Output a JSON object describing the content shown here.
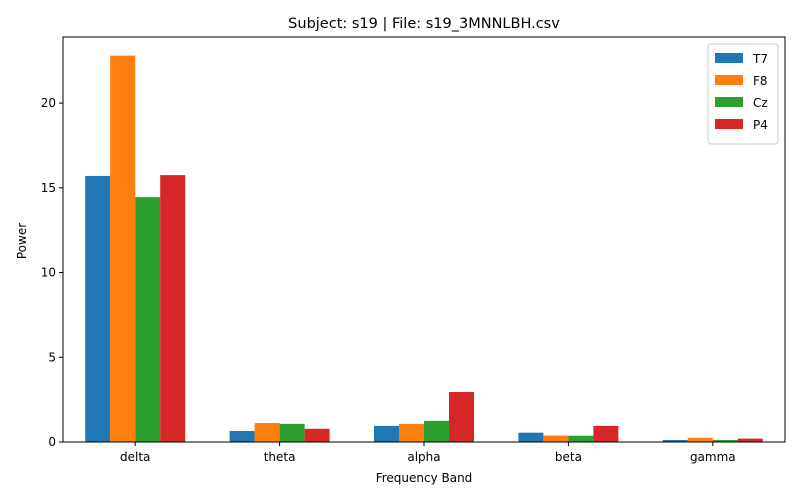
{
  "chart_data": {
    "type": "bar",
    "title": "Subject: s19 | File: s19_3MNNLBH.csv",
    "xlabel": "Frequency Band",
    "ylabel": "Power",
    "categories": [
      "delta",
      "theta",
      "alpha",
      "beta",
      "gamma"
    ],
    "ylim": [
      0,
      23.9
    ],
    "yticks": [
      0,
      5,
      10,
      15,
      20
    ],
    "grid": false,
    "legend_position": "top-right",
    "series": [
      {
        "name": "T7",
        "color": "#1f77b4",
        "values": [
          15.7,
          0.65,
          0.95,
          0.55,
          0.12
        ]
      },
      {
        "name": "F8",
        "color": "#ff7f0e",
        "values": [
          22.8,
          1.12,
          1.07,
          0.38,
          0.25
        ]
      },
      {
        "name": "Cz",
        "color": "#2ca02c",
        "values": [
          14.45,
          1.07,
          1.25,
          0.37,
          0.12
        ]
      },
      {
        "name": "P4",
        "color": "#d62728",
        "values": [
          15.75,
          0.78,
          2.95,
          0.95,
          0.2
        ]
      }
    ]
  }
}
